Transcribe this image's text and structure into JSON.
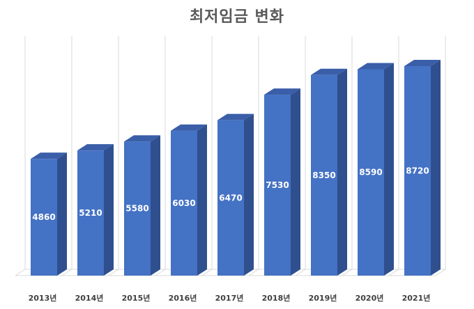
{
  "chart_data": {
    "type": "bar",
    "style": "3d-column",
    "title": "최저임금 변화",
    "xlabel": "",
    "ylabel": "",
    "categories": [
      "2013년",
      "2014년",
      "2015년",
      "2016년",
      "2017년",
      "2018년",
      "2019년",
      "2020년",
      "2021년"
    ],
    "values": [
      4860,
      5210,
      5580,
      6030,
      6470,
      7530,
      8350,
      8590,
      8720
    ],
    "ylim": [
      0,
      9000
    ],
    "grid": true,
    "legend": "none",
    "data_labels": true,
    "colors": {
      "bar_front": "#4472C4",
      "bar_side": "#2F4F8F",
      "bar_top": "#3A5EA8",
      "gridline": "#D9D9D9",
      "label_text": "#FFFFFF"
    }
  }
}
